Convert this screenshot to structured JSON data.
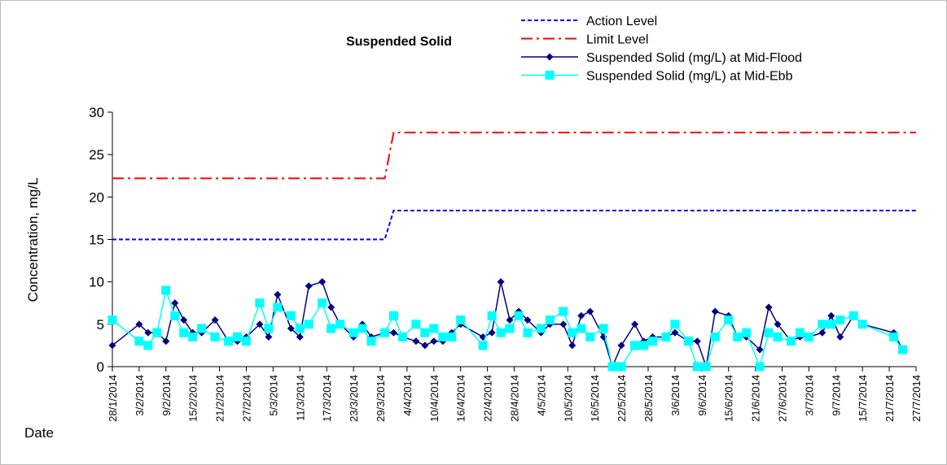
{
  "chart_data": {
    "type": "line",
    "title": "Suspended Solid",
    "y_label": "Concentration, mg/L",
    "x_label": "Date",
    "legend": "top-right",
    "x": [
      "28/1/2014",
      "3/2/2014",
      "5/2/2014",
      "7/2/2014",
      "9/2/2014",
      "11/2/2014",
      "13/2/2014",
      "15/2/2014",
      "17/2/2014",
      "20/2/2014",
      "23/2/2014",
      "25/2/2014",
      "27/2/2014",
      "2/3/2014",
      "4/3/2014",
      "6/3/2014",
      "9/3/2014",
      "11/3/2014",
      "13/3/2014",
      "16/3/2014",
      "18/3/2014",
      "20/3/2014",
      "23/3/2014",
      "25/3/2014",
      "27/3/2014",
      "30/3/2014",
      "1/4/2014",
      "3/4/2014",
      "6/4/2014",
      "8/4/2014",
      "10/4/2014",
      "12/4/2014",
      "14/4/2014",
      "16/4/2014",
      "21/4/2014",
      "23/4/2014",
      "25/4/2014",
      "27/4/2014",
      "29/4/2014",
      "1/5/2014",
      "4/5/2014",
      "6/5/2014",
      "9/5/2014",
      "11/5/2014",
      "13/5/2014",
      "15/5/2014",
      "18/5/2014",
      "20/5/2014",
      "22/5/2014",
      "25/5/2014",
      "27/5/2014",
      "29/5/2014",
      "1/6/2014",
      "3/6/2014",
      "6/6/2014",
      "8/6/2014",
      "10/6/2014",
      "12/6/2014",
      "15/6/2014",
      "17/6/2014",
      "19/6/2014",
      "22/6/2014",
      "24/6/2014",
      "26/6/2014",
      "29/6/2014",
      "1/7/2014",
      "3/7/2014",
      "6/7/2014",
      "8/7/2014",
      "10/7/2014",
      "13/7/2014",
      "15/7/2014",
      "22/7/2014",
      "24/7/2014",
      "27/7/2014"
    ],
    "xlim": [
      "28/1/2014",
      "27/7/2014"
    ],
    "xticks": [
      "28/1/2014",
      "3/2/2014",
      "9/2/2014",
      "15/2/2014",
      "21/2/2014",
      "27/2/2014",
      "5/3/2014",
      "11/3/2014",
      "17/3/2014",
      "23/3/2014",
      "29/3/2014",
      "4/4/2014",
      "10/4/2014",
      "16/4/2014",
      "22/4/2014",
      "28/4/2014",
      "4/5/2014",
      "10/5/2014",
      "16/5/2014",
      "22/5/2014",
      "28/5/2014",
      "3/6/2014",
      "9/6/2014",
      "15/6/2014",
      "21/6/2014",
      "27/6/2014",
      "3/7/2014",
      "9/7/2014",
      "15/7/2014",
      "21/7/2014",
      "27/7/2014"
    ],
    "ylim": [
      0,
      30
    ],
    "yticks": [
      0,
      5,
      10,
      15,
      20,
      25,
      30
    ],
    "series": [
      {
        "name": "Action Level",
        "color": "#0000ff",
        "line_style": "dashed",
        "marker": "none",
        "values": [
          15,
          15,
          15,
          15,
          15,
          15,
          15,
          15,
          15,
          15,
          15,
          15,
          15,
          15,
          15,
          15,
          15,
          15,
          15,
          15,
          15,
          15,
          15,
          15,
          15,
          15,
          18.4,
          18.4,
          18.4,
          18.4,
          18.4,
          18.4,
          18.4,
          18.4,
          18.4,
          18.4,
          18.4,
          18.4,
          18.4,
          18.4,
          18.4,
          18.4,
          18.4,
          18.4,
          18.4,
          18.4,
          18.4,
          18.4,
          18.4,
          18.4,
          18.4,
          18.4,
          18.4,
          18.4,
          18.4,
          18.4,
          18.4,
          18.4,
          18.4,
          18.4,
          18.4,
          18.4,
          18.4,
          18.4,
          18.4,
          18.4,
          18.4,
          18.4,
          18.4,
          18.4,
          18.4,
          18.4,
          18.4,
          18.4,
          18.4
        ]
      },
      {
        "name": "Limit Level",
        "color": "#ff0000",
        "line_style": "dashdot",
        "marker": "none",
        "values": [
          22.2,
          22.2,
          22.2,
          22.2,
          22.2,
          22.2,
          22.2,
          22.2,
          22.2,
          22.2,
          22.2,
          22.2,
          22.2,
          22.2,
          22.2,
          22.2,
          22.2,
          22.2,
          22.2,
          22.2,
          22.2,
          22.2,
          22.2,
          22.2,
          22.2,
          22.2,
          27.6,
          27.6,
          27.6,
          27.6,
          27.6,
          27.6,
          27.6,
          27.6,
          27.6,
          27.6,
          27.6,
          27.6,
          27.6,
          27.6,
          27.6,
          27.6,
          27.6,
          27.6,
          27.6,
          27.6,
          27.6,
          27.6,
          27.6,
          27.6,
          27.6,
          27.6,
          27.6,
          27.6,
          27.6,
          27.6,
          27.6,
          27.6,
          27.6,
          27.6,
          27.6,
          27.6,
          27.6,
          27.6,
          27.6,
          27.6,
          27.6,
          27.6,
          27.6,
          27.6,
          27.6,
          27.6,
          27.6,
          27.6,
          27.6
        ]
      },
      {
        "name": "Suspended Solid (mg/L) at Mid-Flood",
        "color": "#000080",
        "line_style": "solid",
        "marker": "diamond",
        "values": [
          2.5,
          5,
          4,
          4,
          3,
          7.5,
          5.5,
          4,
          4,
          5.5,
          3,
          3,
          3.5,
          5,
          3.5,
          8.5,
          4.5,
          3.5,
          9.5,
          10,
          7,
          5,
          3.5,
          5,
          3.5,
          4,
          4,
          3.5,
          3,
          2.5,
          3,
          3,
          4,
          5,
          3.5,
          4,
          10,
          5.5,
          6.5,
          5.5,
          4,
          5,
          5,
          2.5,
          6,
          6.5,
          3.5,
          0,
          2.5,
          5,
          3,
          3.5,
          3.5,
          4,
          3,
          3,
          0,
          6.5,
          6,
          3.5,
          3.5,
          2,
          7,
          5,
          3,
          3.5,
          3.5,
          4,
          6,
          3.5,
          6,
          5,
          4,
          2,
          null
        ]
      },
      {
        "name": "Suspended Solid (mg/L) at Mid-Ebb",
        "color": "#00ffff",
        "line_style": "solid",
        "marker": "square",
        "values": [
          5.5,
          3,
          2.5,
          4,
          9,
          6,
          4,
          3.5,
          4.5,
          3.5,
          3,
          3.5,
          3,
          7.5,
          4.5,
          7,
          6,
          4.5,
          5,
          7.5,
          4.5,
          5,
          4,
          4.5,
          3,
          4,
          6,
          3.5,
          5,
          4,
          4.5,
          3.5,
          3.5,
          5.5,
          2.5,
          6,
          4,
          4.5,
          6,
          4,
          4.5,
          5.5,
          6.5,
          4,
          4.5,
          3.5,
          4.5,
          0,
          0,
          2.5,
          2.5,
          3,
          3.5,
          5,
          3,
          0,
          0,
          3.5,
          5.5,
          3.5,
          4,
          0,
          4,
          3.5,
          3,
          4,
          3.5,
          5,
          5,
          5.5,
          6,
          5,
          3.5,
          2,
          null
        ]
      }
    ]
  }
}
